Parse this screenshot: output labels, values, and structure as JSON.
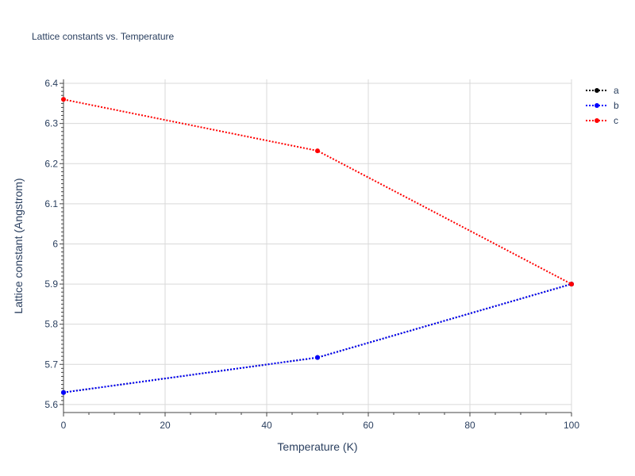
{
  "chart_data": {
    "type": "line",
    "title": "Lattice constants vs. Temperature",
    "xlabel": "Temperature (K)",
    "ylabel": "Lattice constant (Angstrom)",
    "xlim": [
      0,
      100
    ],
    "ylim": [
      5.58,
      6.41
    ],
    "xticks": [
      0,
      20,
      40,
      60,
      80,
      100
    ],
    "xtick_labels": [
      "0",
      "20",
      "40",
      "60",
      "80",
      "100"
    ],
    "yticks": [
      5.6,
      5.7,
      5.8,
      5.9,
      6.0,
      6.1,
      6.2,
      6.3,
      6.4
    ],
    "ytick_labels": [
      "5.6",
      "5.7",
      "5.8",
      "5.9",
      "6",
      "6.1",
      "6.2",
      "6.3",
      "6.4"
    ],
    "grid": true,
    "legend_position": "top-right",
    "line_style": "dotted",
    "series": [
      {
        "name": "a",
        "color": "#000000",
        "x": [
          0,
          50,
          100
        ],
        "y": [
          5.63,
          5.717,
          5.9
        ]
      },
      {
        "name": "b",
        "color": "#0000ff",
        "x": [
          0,
          50,
          100
        ],
        "y": [
          5.63,
          5.717,
          5.9
        ]
      },
      {
        "name": "c",
        "color": "#ff0000",
        "x": [
          0,
          50,
          100
        ],
        "y": [
          6.36,
          6.232,
          5.9
        ]
      }
    ]
  }
}
